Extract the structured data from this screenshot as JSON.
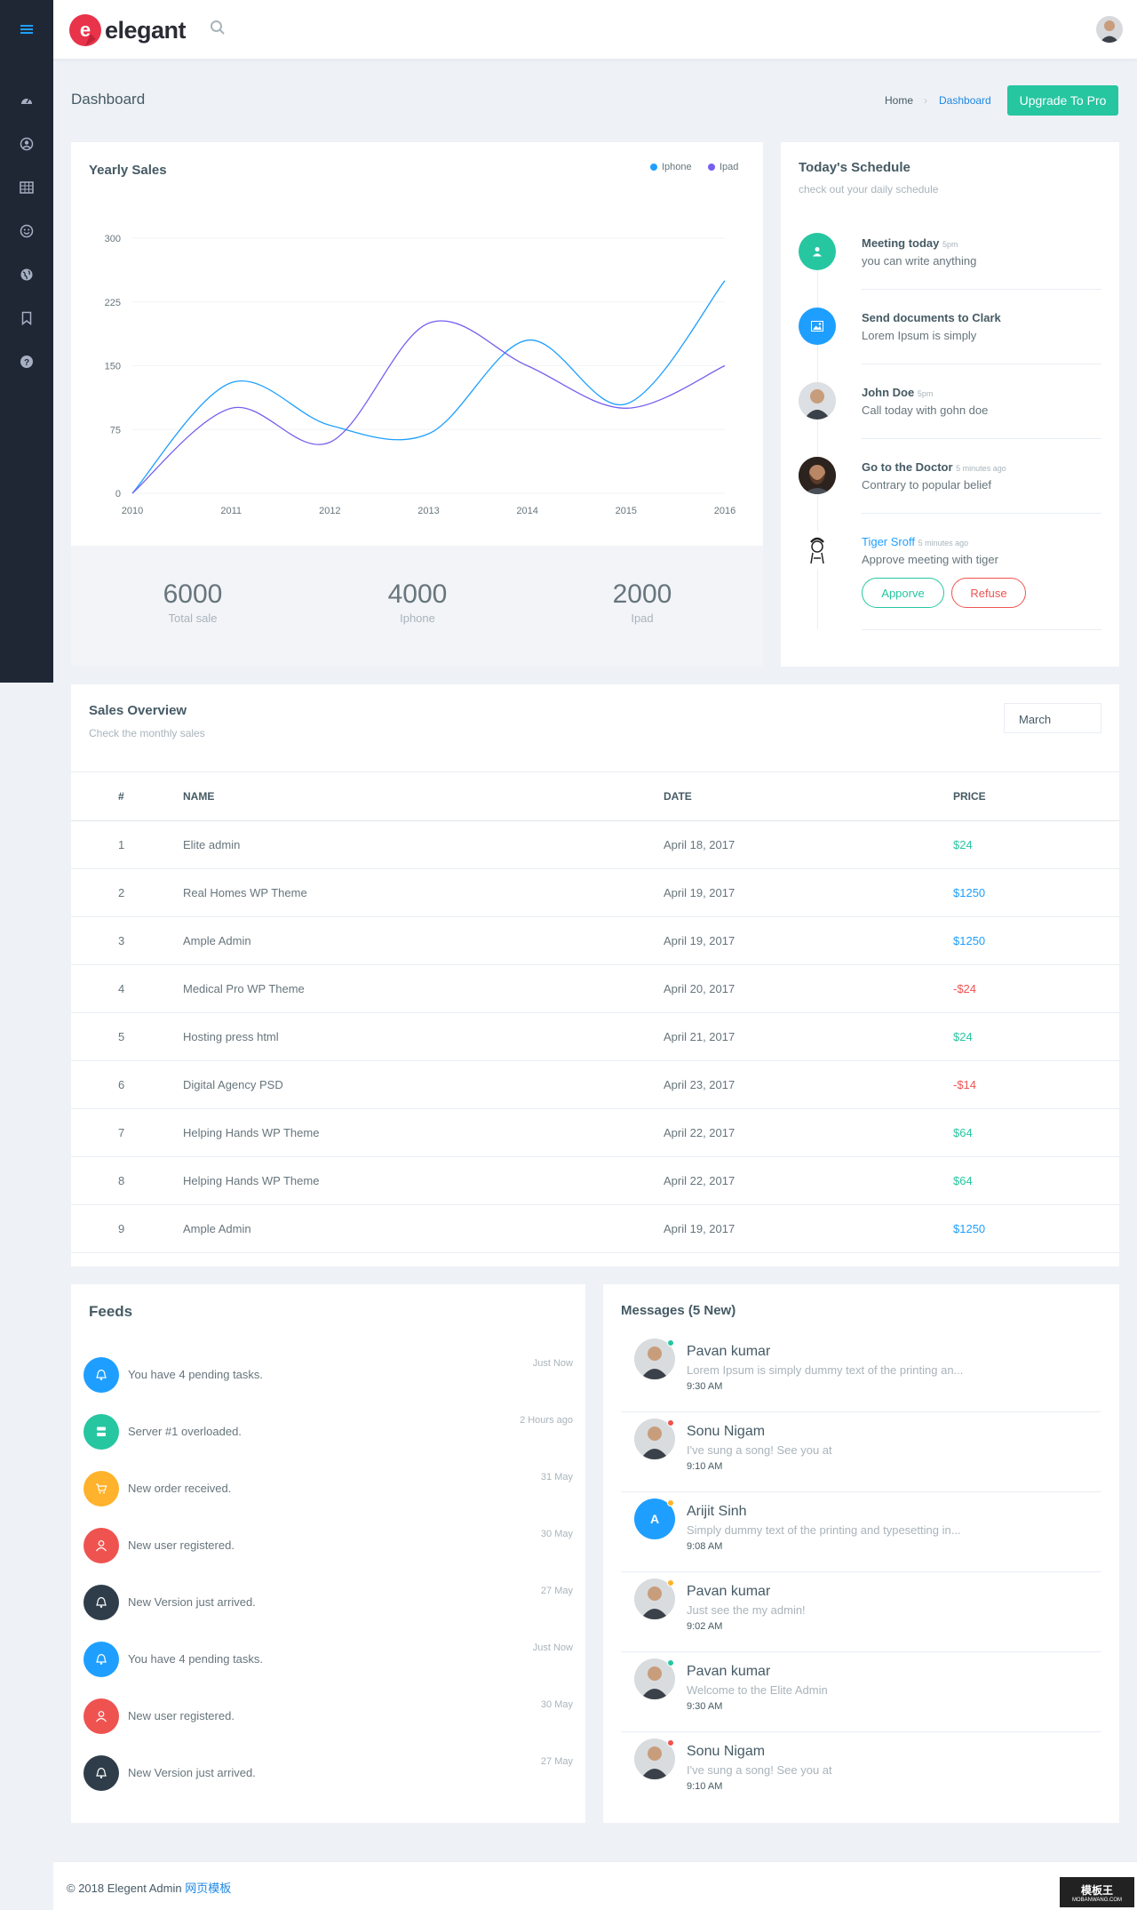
{
  "app": {
    "logo_letter": "e",
    "logo_text": "elegant"
  },
  "header": {
    "page_title": "Dashboard",
    "breadcrumb_home": "Home",
    "breadcrumb_current": "Dashboard",
    "upgrade_label": "Upgrade To Pro"
  },
  "sidebar": {
    "icons": [
      "dashboard-icon",
      "user-icon",
      "table-icon",
      "smile-icon",
      "globe-icon",
      "bookmark-icon",
      "help-icon"
    ]
  },
  "colors": {
    "accent": "#26c6a1",
    "sidebar": "#1f2735",
    "iphone": "#1e9fff",
    "ipad": "#7460ee",
    "positive": "#26c6a1",
    "info": "#1e9fff",
    "negative": "#ef5350"
  },
  "yearly_sales": {
    "title": "Yearly Sales",
    "legend": [
      "Iphone",
      "Ipad"
    ],
    "stats": [
      {
        "value": "6000",
        "label": "Total sale"
      },
      {
        "value": "4000",
        "label": "Iphone"
      },
      {
        "value": "2000",
        "label": "Ipad"
      }
    ]
  },
  "chart_data": {
    "type": "line",
    "title": "Yearly Sales",
    "xlabel": "",
    "ylabel": "",
    "x": [
      "2010",
      "2011",
      "2012",
      "2013",
      "2014",
      "2015",
      "2016"
    ],
    "yticks": [
      "0",
      "75",
      "150",
      "225",
      "300"
    ],
    "ylim": [
      0,
      300
    ],
    "grid": true,
    "legend_position": "top-right",
    "series": [
      {
        "name": "Iphone",
        "values": [
          0,
          130,
          80,
          70,
          180,
          105,
          250
        ]
      },
      {
        "name": "Ipad",
        "values": [
          0,
          100,
          60,
          200,
          150,
          100,
          150
        ]
      }
    ]
  },
  "schedule": {
    "title": "Today's Schedule",
    "subtitle": "check out your daily schedule",
    "items": [
      {
        "name": "Meeting today",
        "time": "5pm",
        "desc": "you can write anything",
        "icon": "user-icon"
      },
      {
        "name": "Send documents to Clark",
        "time": "",
        "desc": "Lorem Ipsum is simply",
        "icon": "image-icon"
      },
      {
        "name": "John Doe",
        "time": "5pm",
        "desc": "Call today with gohn doe",
        "icon": "avatar"
      },
      {
        "name": "Go to the Doctor",
        "time": "5 minutes ago",
        "desc": "Contrary to popular belief",
        "icon": "avatar"
      },
      {
        "name": "Tiger Sroff",
        "time": "5 minutes ago",
        "desc": "Approve meeting with tiger",
        "icon": "avatar"
      }
    ],
    "approve_label": "Apporve",
    "refuse_label": "Refuse"
  },
  "sales_overview": {
    "title": "Sales Overview",
    "subtitle": "Check the monthly sales",
    "month": "March",
    "columns": [
      "#",
      "NAME",
      "DATE",
      "PRICE"
    ],
    "rows": [
      {
        "n": "1",
        "name": "Elite admin",
        "date": "April 18, 2017",
        "price": "$24",
        "tone": "positive"
      },
      {
        "n": "2",
        "name": "Real Homes WP Theme",
        "date": "April 19, 2017",
        "price": "$1250",
        "tone": "info"
      },
      {
        "n": "3",
        "name": "Ample Admin",
        "date": "April 19, 2017",
        "price": "$1250",
        "tone": "info"
      },
      {
        "n": "4",
        "name": "Medical Pro WP Theme",
        "date": "April 20, 2017",
        "price": "-$24",
        "tone": "negative"
      },
      {
        "n": "5",
        "name": "Hosting press html",
        "date": "April 21, 2017",
        "price": "$24",
        "tone": "positive"
      },
      {
        "n": "6",
        "name": "Digital Agency PSD",
        "date": "April 23, 2017",
        "price": "-$14",
        "tone": "negative"
      },
      {
        "n": "7",
        "name": "Helping Hands WP Theme",
        "date": "April 22, 2017",
        "price": "$64",
        "tone": "positive"
      },
      {
        "n": "8",
        "name": "Helping Hands WP Theme",
        "date": "April 22, 2017",
        "price": "$64",
        "tone": "positive"
      },
      {
        "n": "9",
        "name": "Ample Admin",
        "date": "April 19, 2017",
        "price": "$1250",
        "tone": "info"
      }
    ]
  },
  "feeds": {
    "title": "Feeds",
    "items": [
      {
        "text": "You have 4 pending tasks.",
        "time": "Just Now",
        "color": "#1e9fff",
        "icon": "bell-icon"
      },
      {
        "text": "Server #1 overloaded.",
        "time": "2 Hours ago",
        "color": "#26c6a1",
        "icon": "server-icon"
      },
      {
        "text": "New order received.",
        "time": "31 May",
        "color": "#ffb22b",
        "icon": "cart-icon"
      },
      {
        "text": "New user registered.",
        "time": "30 May",
        "color": "#ef5350",
        "icon": "user-icon"
      },
      {
        "text": "New Version just arrived.",
        "time": "27 May",
        "color": "#2f3d4a",
        "icon": "bell-icon"
      },
      {
        "text": "You have 4 pending tasks.",
        "time": "Just Now",
        "color": "#1e9fff",
        "icon": "bell-icon"
      },
      {
        "text": "New user registered.",
        "time": "30 May",
        "color": "#ef5350",
        "icon": "user-icon"
      },
      {
        "text": "New Version just arrived.",
        "time": "27 May",
        "color": "#2f3d4a",
        "icon": "bell-icon"
      }
    ]
  },
  "messages": {
    "title": "Messages (5 New)",
    "items": [
      {
        "name": "Pavan kumar",
        "text": "Lorem Ipsum is simply dummy text of the printing an...",
        "time": "9:30 AM",
        "status": "#26c6a1",
        "avatar": "photo",
        "initial": ""
      },
      {
        "name": "Sonu Nigam",
        "text": "I've sung a song! See you at",
        "time": "9:10 AM",
        "status": "#ef5350",
        "avatar": "photo",
        "initial": ""
      },
      {
        "name": "Arijit Sinh",
        "text": "Simply dummy text of the printing and typesetting in...",
        "time": "9:08 AM",
        "status": "#ffb22b",
        "avatar": "letter",
        "initial": "A"
      },
      {
        "name": "Pavan kumar",
        "text": "Just see the my admin!",
        "time": "9:02 AM",
        "status": "#ffb22b",
        "avatar": "photo",
        "initial": ""
      },
      {
        "name": "Pavan kumar",
        "text": "Welcome to the Elite Admin",
        "time": "9:30 AM",
        "status": "#26c6a1",
        "avatar": "photo",
        "initial": ""
      },
      {
        "name": "Sonu Nigam",
        "text": "I've sung a song! See you at",
        "time": "9:10 AM",
        "status": "#ef5350",
        "avatar": "photo",
        "initial": ""
      }
    ]
  },
  "footer": {
    "text": "© 2018 Elegent Admin",
    "link": "网页模板"
  },
  "watermark": {
    "line1": "模板王",
    "line2": "MOBANWANG.COM"
  }
}
